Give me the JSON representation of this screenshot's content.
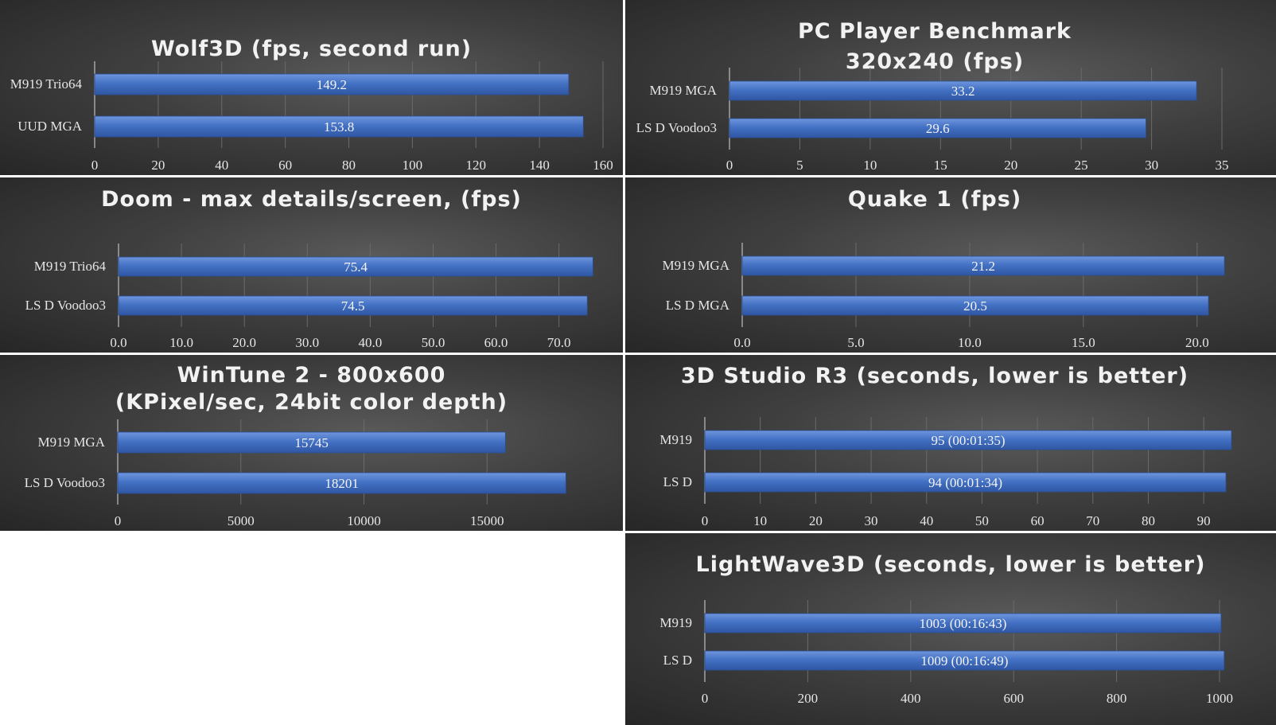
{
  "chart_data": [
    {
      "type": "bar",
      "orientation": "horizontal",
      "title": [
        "Wolf3D (fps, second run)"
      ],
      "categories": [
        "M919 Trio64",
        "UUD MGA"
      ],
      "values": [
        149.2,
        153.8
      ],
      "data_labels": [
        "149.2",
        "153.8"
      ],
      "xlim": [
        0,
        160
      ],
      "ticks": [
        0,
        20,
        40,
        60,
        80,
        100,
        120,
        140,
        160
      ],
      "tick_labels": [
        "0",
        "20",
        "40",
        "60",
        "80",
        "100",
        "120",
        "140",
        "160"
      ],
      "grid": true,
      "bar_color": "#4472c4"
    },
    {
      "type": "bar",
      "orientation": "horizontal",
      "title": [
        "PC Player Benchmark",
        "320x240 (fps)"
      ],
      "categories": [
        "M919 MGA",
        "LS D Voodoo3"
      ],
      "values": [
        33.2,
        29.6
      ],
      "data_labels": [
        "33.2",
        "29.6"
      ],
      "xlim": [
        0,
        35
      ],
      "ticks": [
        0,
        5,
        10,
        15,
        20,
        25,
        30,
        35
      ],
      "tick_labels": [
        "0",
        "5",
        "10",
        "15",
        "20",
        "25",
        "30",
        "35"
      ],
      "grid": true,
      "bar_color": "#4472c4"
    },
    {
      "type": "bar",
      "orientation": "horizontal",
      "title": [
        "Doom - max details/screen, (fps)"
      ],
      "categories": [
        "M919 Trio64",
        "LS D Voodoo3"
      ],
      "values": [
        75.4,
        74.5
      ],
      "data_labels": [
        "75.4",
        "74.5"
      ],
      "xlim": [
        0,
        77
      ],
      "ticks": [
        0,
        10,
        20,
        30,
        40,
        50,
        60,
        70
      ],
      "tick_labels": [
        "0.0",
        "10.0",
        "20.0",
        "30.0",
        "40.0",
        "50.0",
        "60.0",
        "70.0"
      ],
      "grid": true,
      "bar_color": "#4472c4"
    },
    {
      "type": "bar",
      "orientation": "horizontal",
      "title": [
        "Quake 1 (fps)"
      ],
      "categories": [
        "M919 MGA",
        "LS D MGA"
      ],
      "values": [
        21.2,
        20.5
      ],
      "data_labels": [
        "21.2",
        "20.5"
      ],
      "xlim": [
        0,
        22
      ],
      "ticks": [
        0,
        5,
        10,
        15,
        20
      ],
      "tick_labels": [
        "0.0",
        "5.0",
        "10.0",
        "15.0",
        "20.0"
      ],
      "grid": true,
      "bar_color": "#4472c4"
    },
    {
      "type": "bar",
      "orientation": "horizontal",
      "title": [
        "WinTune 2 - 800x600",
        "(KPixel/sec, 24bit color depth)"
      ],
      "categories": [
        "M919 MGA",
        "LS D Voodoo3"
      ],
      "values": [
        15745,
        18201
      ],
      "data_labels": [
        "15745",
        "18201"
      ],
      "xlim": [
        0,
        20000
      ],
      "ticks": [
        0,
        5000,
        10000,
        15000
      ],
      "tick_labels": [
        "0",
        "5000",
        "10000",
        "15000"
      ],
      "grid": true,
      "bar_color": "#4472c4"
    },
    {
      "type": "bar",
      "orientation": "horizontal",
      "title": [
        "3D Studio R3 (seconds, lower is better)"
      ],
      "categories": [
        "M919",
        "LS D"
      ],
      "values": [
        95,
        94
      ],
      "data_labels": [
        "95 (00:01:35)",
        "94 (00:01:34)"
      ],
      "xlim": [
        0,
        95
      ],
      "ticks": [
        0,
        10,
        20,
        30,
        40,
        50,
        60,
        70,
        80,
        90
      ],
      "tick_labels": [
        "0",
        "10",
        "20",
        "30",
        "40",
        "50",
        "60",
        "70",
        "80",
        "90"
      ],
      "grid": true,
      "bar_color": "#4472c4"
    },
    {
      "type": "bar",
      "orientation": "horizontal",
      "title": [
        "LightWave3D (seconds, lower is better)"
      ],
      "categories": [
        "M919",
        "LS D"
      ],
      "values": [
        1003,
        1009
      ],
      "data_labels": [
        "1003 (00:16:43)",
        "1009 (00:16:49)"
      ],
      "xlim": [
        0,
        1000
      ],
      "ticks": [
        0,
        200,
        400,
        600,
        800,
        1000
      ],
      "tick_labels": [
        "0",
        "200",
        "400",
        "600",
        "800",
        "1000"
      ],
      "grid": true,
      "bar_color": "#4472c4"
    }
  ]
}
